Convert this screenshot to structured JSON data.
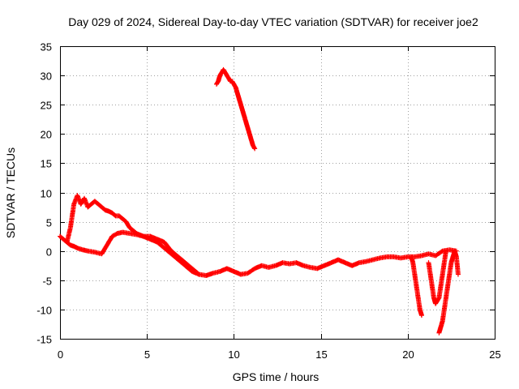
{
  "chart_data": {
    "type": "scatter",
    "title": "Day 029 of 2024, Sidereal Day-to-day VTEC variation (SDTVAR) for receiver joe2",
    "xlabel": "GPS time / hours",
    "ylabel": "SDTVAR / TECUs",
    "xlim": [
      0,
      25
    ],
    "ylim": [
      -15,
      35
    ],
    "xticks": [
      0,
      5,
      10,
      15,
      20,
      25
    ],
    "yticks": [
      -15,
      -10,
      -5,
      0,
      5,
      10,
      15,
      20,
      25,
      30,
      35
    ],
    "xtick_labels": [
      "0",
      "5",
      "10",
      "15",
      "20",
      "25"
    ],
    "ytick_labels": [
      "-15",
      "-10",
      "-5",
      "0",
      "5",
      "10",
      "15",
      "20",
      "25",
      "30",
      "35"
    ],
    "grid": true,
    "marker": "+",
    "color": "#ff0000",
    "series": [
      {
        "name": "main_lower",
        "x": [
          0,
          0.2,
          0.4,
          0.6,
          0.8,
          1.0,
          1.3,
          1.6,
          2.0,
          2.4,
          2.7,
          3.0,
          3.3,
          3.6,
          4.0,
          4.4,
          4.8,
          5.2,
          5.6,
          6.0,
          6.4,
          6.8,
          7.2,
          7.6,
          8.0,
          8.4,
          8.8,
          9.2,
          9.6,
          10.0,
          10.4,
          10.8,
          11.2,
          11.6,
          12.0,
          12.4,
          12.8,
          13.2,
          13.6,
          14.0,
          14.4,
          14.8,
          15.2,
          15.6,
          16.0,
          16.4,
          16.8,
          17.2,
          17.6,
          18.0,
          18.4,
          18.8,
          19.2,
          19.6,
          20.0,
          20.4,
          20.8,
          21.2,
          21.6,
          22.0,
          22.4,
          22.8
        ],
        "y": [
          2.5,
          2.0,
          1.5,
          1.0,
          0.8,
          0.5,
          0.2,
          0.0,
          -0.2,
          -0.5,
          1.0,
          2.5,
          3.0,
          3.2,
          3.0,
          2.8,
          2.5,
          2.0,
          1.5,
          0.5,
          -0.5,
          -1.5,
          -2.5,
          -3.5,
          -4.0,
          -4.2,
          -3.8,
          -3.5,
          -3.0,
          -3.5,
          -4.0,
          -3.8,
          -3.0,
          -2.5,
          -2.8,
          -2.5,
          -2.0,
          -2.2,
          -2.0,
          -2.5,
          -2.8,
          -3.0,
          -2.5,
          -2.0,
          -1.5,
          -2.0,
          -2.5,
          -2.0,
          -1.8,
          -1.5,
          -1.2,
          -1.0,
          -1.0,
          -1.2,
          -1.0,
          -1.0,
          -0.8,
          -0.5,
          -0.8,
          0.0,
          0.2,
          0.0
        ]
      },
      {
        "name": "main_upper",
        "x": [
          0.4,
          0.6,
          0.8,
          1.0,
          1.2,
          1.4,
          1.6,
          1.8,
          2.0,
          2.2,
          2.4,
          2.6,
          2.8,
          3.0,
          3.2,
          3.4,
          3.6,
          3.8,
          4.0,
          4.4,
          4.8,
          5.2,
          5.6,
          6.0,
          6.4,
          6.8,
          7.2,
          7.6,
          8.0
        ],
        "y": [
          1.5,
          4.0,
          8.0,
          9.5,
          8.0,
          9.0,
          7.5,
          8.0,
          8.5,
          8.0,
          7.5,
          7.0,
          6.8,
          6.5,
          6.0,
          6.0,
          5.5,
          5.0,
          4.0,
          3.0,
          2.5,
          2.5,
          2.0,
          1.5,
          0.0,
          -1.0,
          -2.0,
          -3.0,
          -4.0
        ]
      },
      {
        "name": "evening_block",
        "x": [
          9.0,
          9.1,
          9.2,
          9.3,
          9.4,
          9.5,
          9.6,
          9.7,
          9.8,
          9.9,
          10.0,
          10.1,
          10.2,
          10.3,
          10.4,
          10.5,
          10.6,
          10.7,
          10.8,
          10.9,
          11.0,
          11.1,
          11.2
        ],
        "y": [
          28.5,
          29.0,
          30.0,
          30.5,
          31.0,
          30.5,
          30.0,
          29.5,
          29.0,
          29.0,
          28.5,
          28.0,
          27.0,
          26.0,
          25.0,
          24.0,
          23.0,
          22.0,
          21.0,
          20.0,
          19.0,
          18.0,
          17.5
        ]
      },
      {
        "name": "spike_a",
        "x": [
          20.2,
          20.3,
          20.4,
          20.5,
          20.6,
          20.7,
          20.8
        ],
        "y": [
          -1.0,
          -2.0,
          -4.0,
          -6.0,
          -8.0,
          -10.0,
          -11.0
        ]
      },
      {
        "name": "spike_b",
        "x": [
          21.8,
          21.9,
          22.0,
          22.1,
          22.2,
          22.3,
          22.4,
          22.5,
          22.6,
          22.7,
          22.8,
          22.9
        ],
        "y": [
          -14.0,
          -13.0,
          -12.0,
          -10.0,
          -8.0,
          -6.0,
          -4.0,
          -2.0,
          -1.0,
          0.0,
          -1.0,
          -4.0
        ]
      },
      {
        "name": "spike_c",
        "x": [
          21.2,
          21.3,
          21.4,
          21.5,
          21.6,
          21.7,
          21.8,
          21.9,
          22.0,
          22.1,
          22.2
        ],
        "y": [
          -2.0,
          -4.0,
          -6.0,
          -8.0,
          -9.0,
          -8.5,
          -8.0,
          -6.0,
          -4.0,
          -2.0,
          0.0
        ]
      }
    ]
  }
}
